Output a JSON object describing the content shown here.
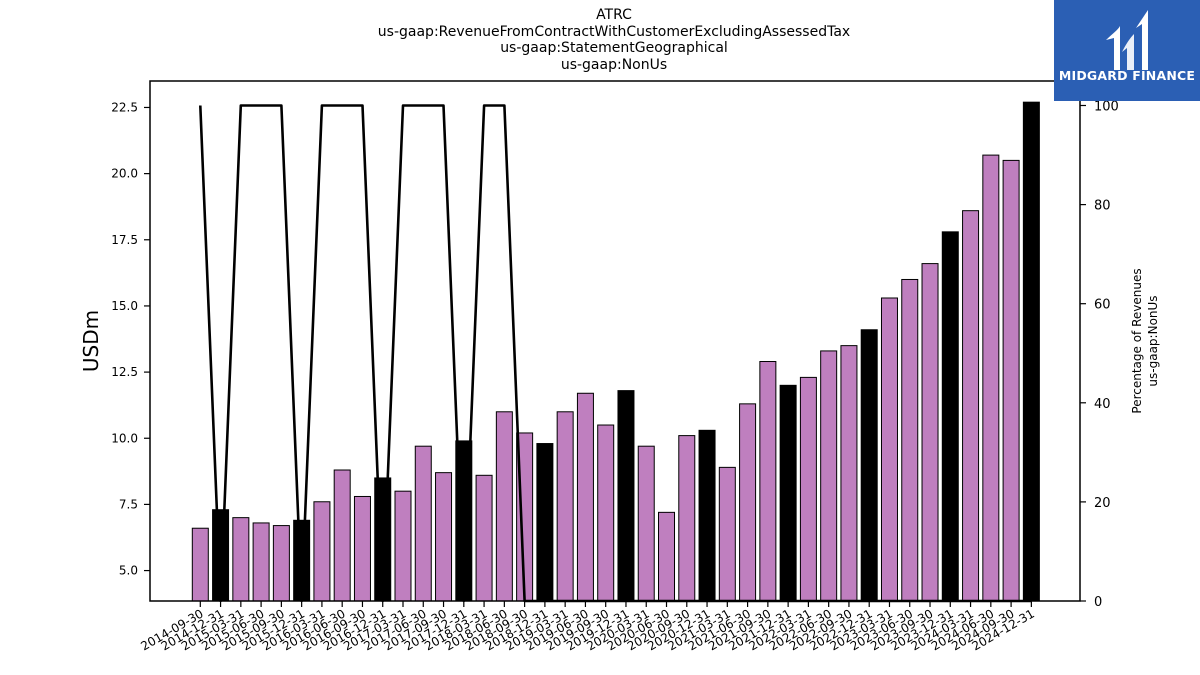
{
  "title_lines": [
    "ATRC",
    "us-gaap:RevenueFromContractWithCustomerExcludingAssessedTax",
    "us-gaap:StatementGeographical",
    "us-gaap:NonUs"
  ],
  "logo": {
    "text": "MIDGARD FINANCE",
    "background": "#2b5fb4"
  },
  "chart_data": {
    "type": "bar",
    "ylabel": "USDm",
    "y2label": [
      "Percentage of Revenues",
      "us-gaap:NonUs"
    ],
    "ylim": [
      3.85,
      23.5
    ],
    "y2lim": [
      0,
      100
    ],
    "yticks": [
      "5.0",
      "7.5",
      "10.0",
      "12.5",
      "15.0",
      "17.5",
      "20.0",
      "22.5"
    ],
    "y2ticks": [
      "0",
      "20",
      "40",
      "60",
      "80",
      "100"
    ],
    "colors": {
      "quarter": "#bf7fbf",
      "year_end": "#000000",
      "line": "#000000"
    },
    "categories": [
      "2014-09-30",
      "2014-12-31",
      "2015-03-31",
      "2015-06-30",
      "2015-09-30",
      "2015-12-31",
      "2016-03-31",
      "2016-06-30",
      "2016-09-30",
      "2016-12-31",
      "2017-03-31",
      "2017-06-30",
      "2017-09-30",
      "2017-12-31",
      "2018-03-31",
      "2018-06-30",
      "2018-09-30",
      "2018-12-31",
      "2019-03-31",
      "2019-06-30",
      "2019-09-30",
      "2019-12-31",
      "2020-03-31",
      "2020-06-30",
      "2020-09-30",
      "2020-12-31",
      "2021-03-31",
      "2021-06-30",
      "2021-09-30",
      "2021-12-31",
      "2022-03-31",
      "2022-06-30",
      "2022-09-30",
      "2022-12-31",
      "2023-03-31",
      "2023-06-30",
      "2023-09-30",
      "2023-12-31",
      "2024-03-31",
      "2024-06-30",
      "2024-09-30",
      "2024-12-31"
    ],
    "values": [
      6.6,
      7.3,
      7.0,
      6.8,
      6.7,
      6.9,
      7.6,
      8.8,
      7.8,
      8.5,
      8.0,
      9.7,
      8.7,
      9.9,
      8.6,
      11.0,
      10.2,
      9.8,
      11.0,
      11.7,
      10.5,
      11.8,
      9.7,
      7.2,
      10.1,
      10.3,
      8.9,
      11.3,
      12.9,
      12.0,
      12.3,
      13.3,
      13.5,
      14.1,
      15.3,
      16.0,
      16.6,
      17.8,
      18.6,
      20.7,
      20.5,
      22.7
    ],
    "year_end": [
      false,
      true,
      false,
      false,
      false,
      true,
      false,
      false,
      false,
      true,
      false,
      false,
      false,
      true,
      false,
      false,
      false,
      true,
      false,
      false,
      false,
      true,
      false,
      false,
      false,
      true,
      false,
      false,
      false,
      true,
      false,
      false,
      false,
      true,
      false,
      false,
      false,
      true,
      false,
      false,
      false,
      true
    ],
    "percentage": [
      100,
      0,
      100,
      100,
      100,
      0,
      100,
      100,
      100,
      0,
      100,
      100,
      100,
      0,
      100,
      100,
      0,
      0,
      0,
      0,
      0,
      0,
      0,
      0,
      0,
      0,
      0,
      0,
      0,
      0,
      0,
      0,
      0,
      0,
      0,
      0,
      0,
      0,
      0,
      0,
      0,
      0
    ]
  }
}
